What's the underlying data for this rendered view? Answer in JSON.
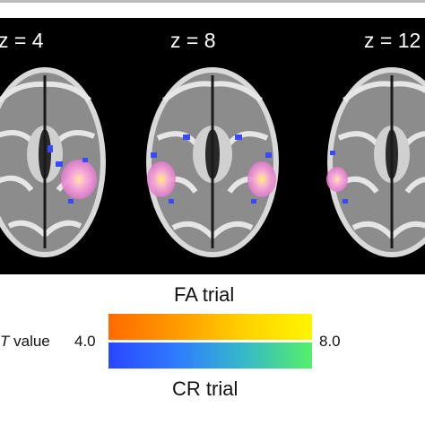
{
  "slices": [
    {
      "label": "z = 4"
    },
    {
      "label": "z = 8"
    },
    {
      "label": "z = 12"
    }
  ],
  "legend": {
    "fa_label": "FA trial",
    "cr_label": "CR trial",
    "t_prefix": "T",
    "t_suffix": " value",
    "min_value": "4.0",
    "max_value": "8.0",
    "fa_colors": [
      "#ff6a00",
      "#ff9a00",
      "#ffd200",
      "#fff500"
    ],
    "cr_colors": [
      "#2a46ff",
      "#2f7bff",
      "#36b9c8",
      "#55f06a"
    ]
  }
}
